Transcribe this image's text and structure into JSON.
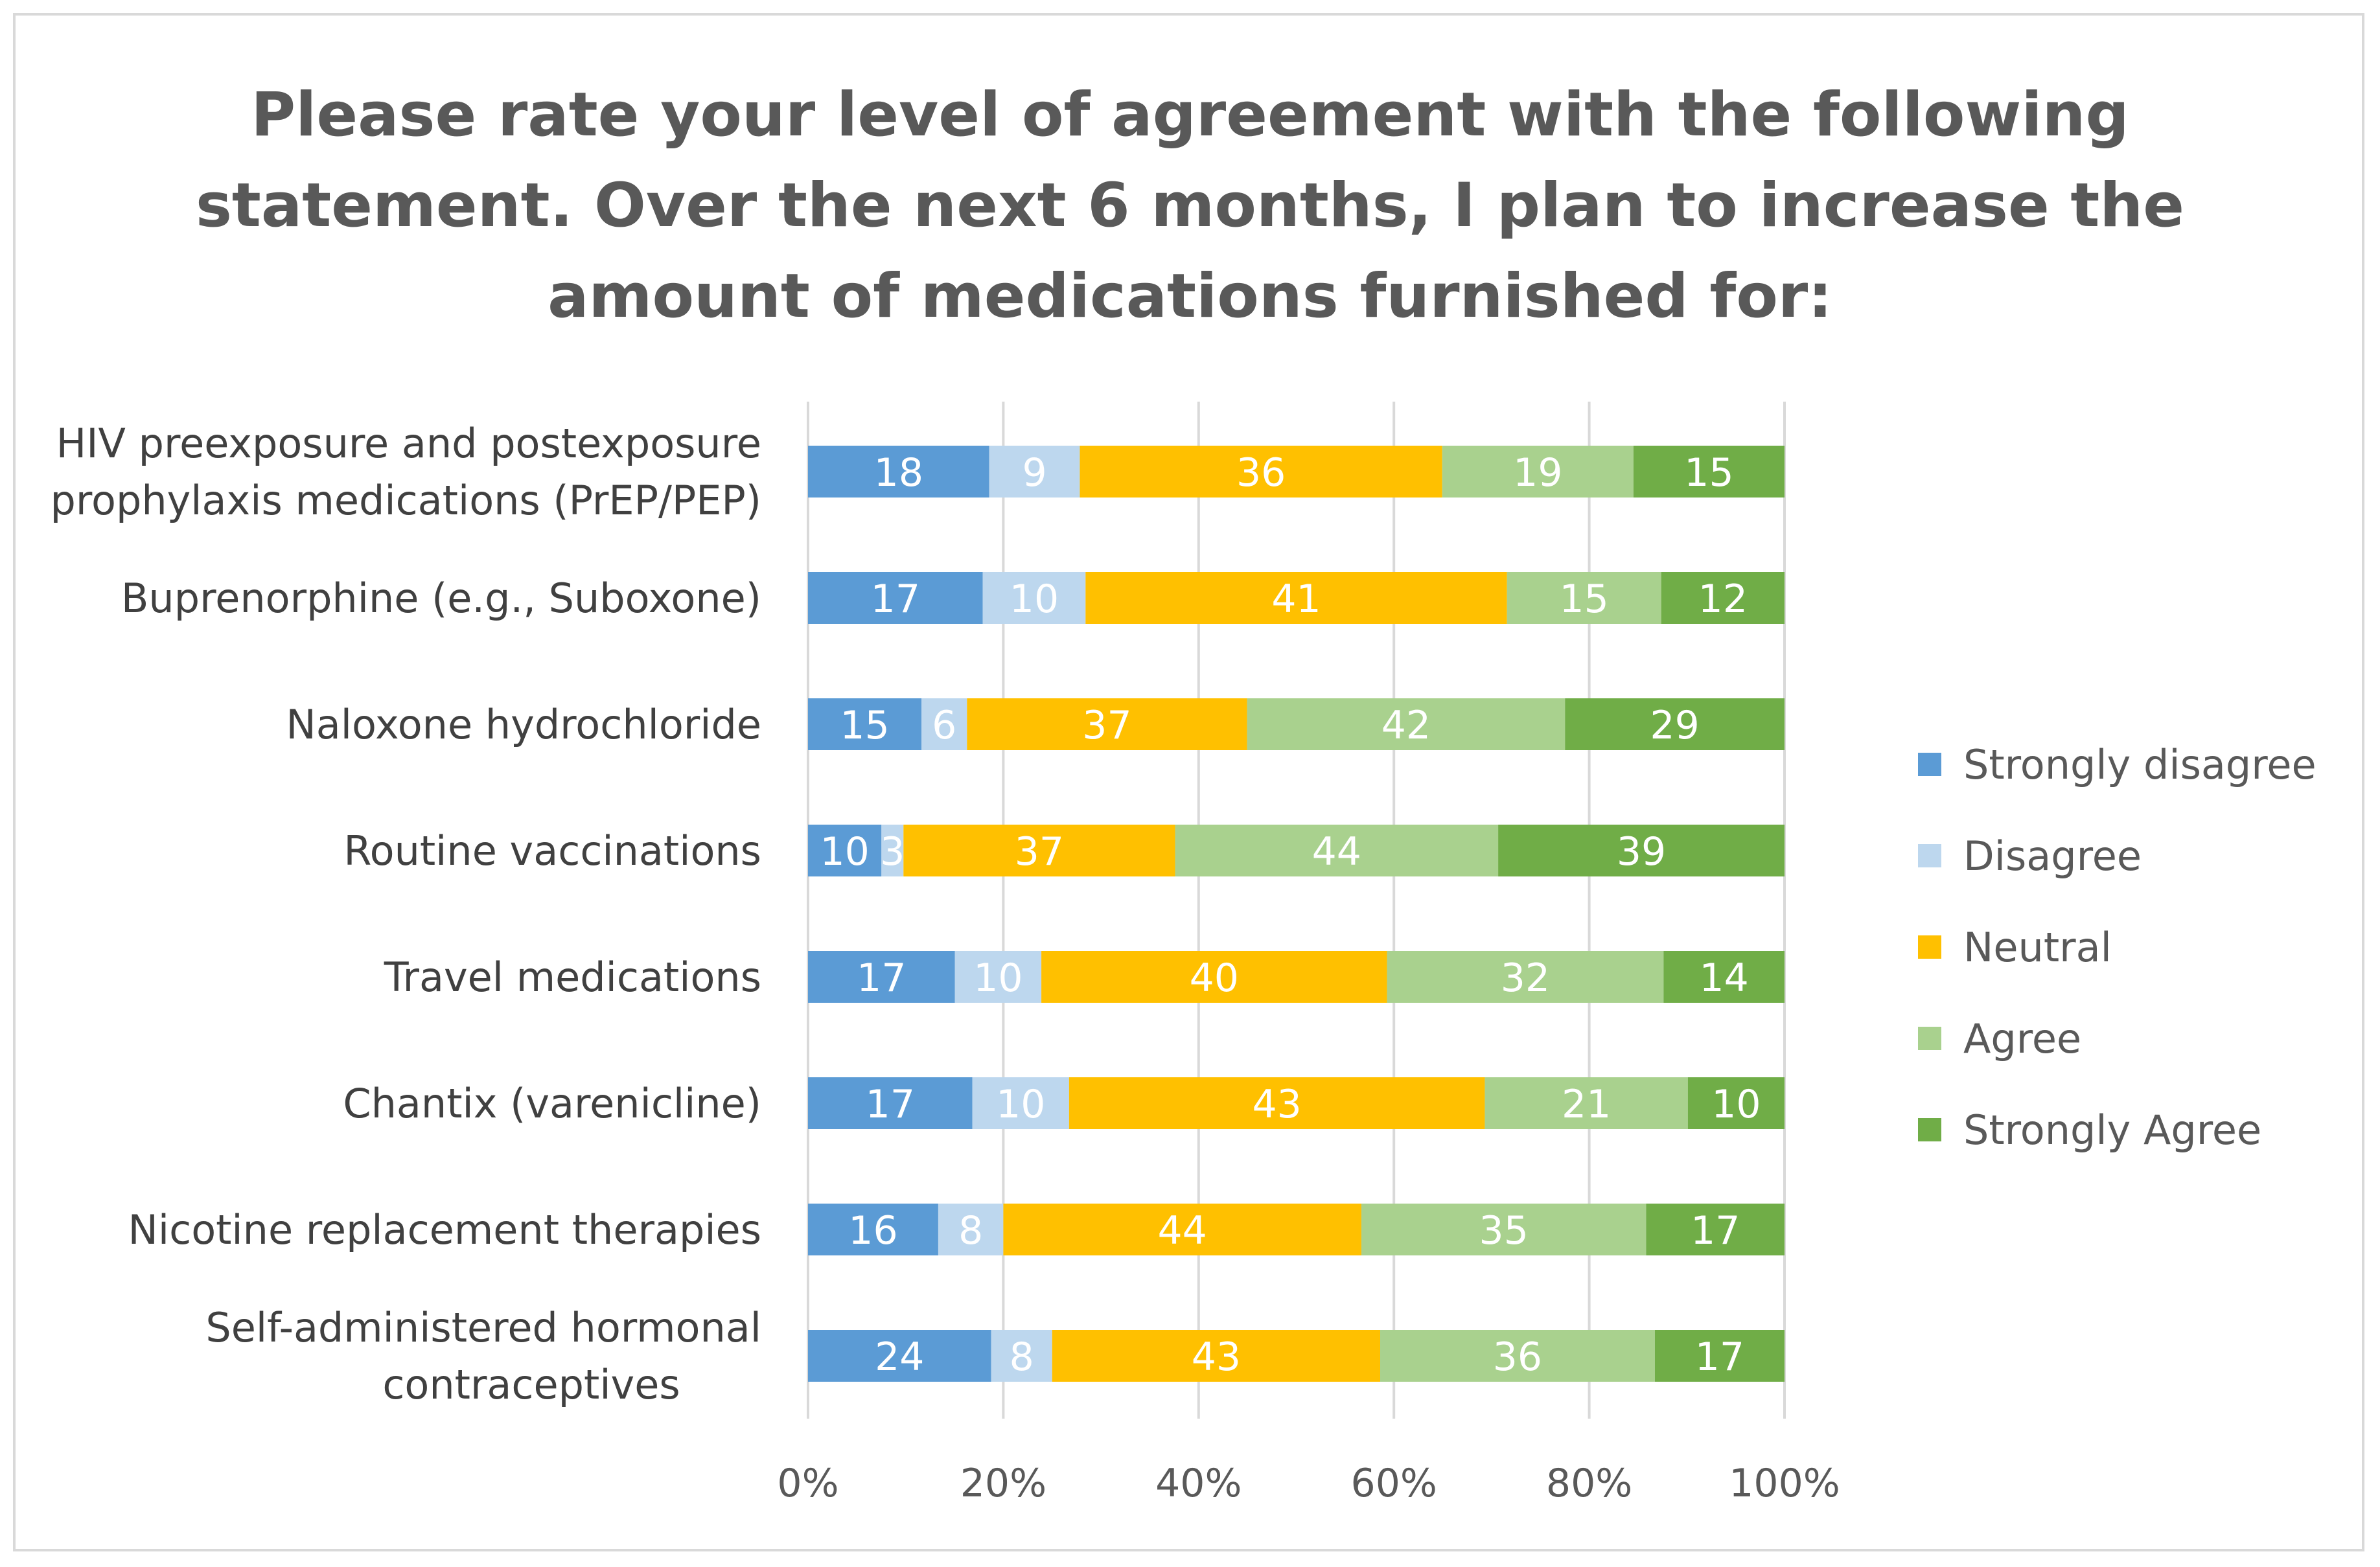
{
  "chart_data": {
    "type": "bar",
    "orientation": "horizontal",
    "stacking": "percent",
    "title": "Please rate your level of agreement with the following\nstatement. Over the next 6 months, I plan to increase the\namount of medications furnished for:",
    "xlabel": "",
    "ylabel": "",
    "xlim": [
      0,
      100
    ],
    "x_ticks": [
      "0%",
      "20%",
      "40%",
      "60%",
      "80%",
      "100%"
    ],
    "grid": true,
    "legend_position": "right",
    "categories": [
      "HIV preexposure and postexposure\nprophylaxis medications (PrEP/PEP)",
      "Buprenorphine (e.g., Suboxone)",
      "Naloxone hydrochloride",
      "Routine vaccinations",
      "Travel medications",
      "Chantix (varenicline)",
      "Nicotine replacement therapies",
      "Self-administered hormonal\ncontraceptives"
    ],
    "series": [
      {
        "name": "Strongly disagree",
        "color": "#5b9bd5",
        "values": [
          18,
          17,
          15,
          10,
          17,
          17,
          16,
          24
        ]
      },
      {
        "name": "Disagree",
        "color": "#bdd7ee",
        "values": [
          9,
          10,
          6,
          3,
          10,
          10,
          8,
          8
        ]
      },
      {
        "name": "Neutral",
        "color": "#ffc000",
        "values": [
          36,
          41,
          37,
          37,
          40,
          43,
          44,
          43
        ]
      },
      {
        "name": "Agree",
        "color": "#a9d18e",
        "values": [
          19,
          15,
          42,
          44,
          32,
          21,
          35,
          36
        ]
      },
      {
        "name": "Strongly Agree",
        "color": "#70ad47",
        "values": [
          15,
          12,
          29,
          39,
          14,
          10,
          17,
          17
        ]
      }
    ]
  }
}
